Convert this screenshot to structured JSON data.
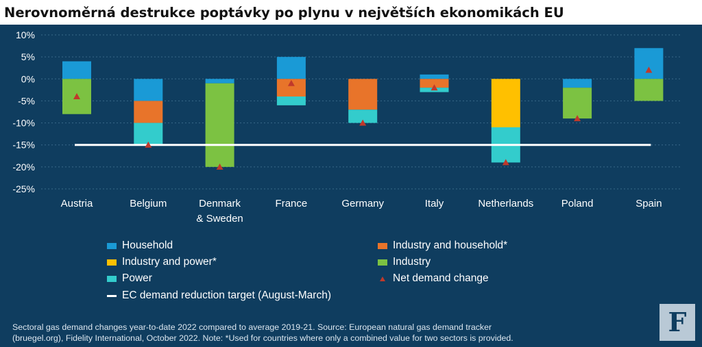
{
  "title": "Nerovnoměrná destrukce poptávky po plynu v největších ekonomikách EU",
  "colors": {
    "background": "#0f3d5f",
    "household": "#1a9ad6",
    "industry_and_household": "#e8742a",
    "industry_and_power": "#ffc000",
    "industry": "#7cc242",
    "power": "#33cccc",
    "net_demand_change": "#c0392b",
    "target_line": "#ffffff"
  },
  "legend": {
    "household": "Household",
    "industry_and_household": "Industry and household*",
    "industry_and_power": "Industry and power*",
    "industry": "Industry",
    "power": "Power",
    "net_demand_change": "Net demand change",
    "target": "EC demand reduction target (August-March)"
  },
  "footnote": {
    "line1": "Sectoral gas demand changes year-to-date 2022 compared to average 2019-21. Source: European natural gas demand tracker",
    "line2": "(bruegel.org), Fidelity International, October 2022. Note: *Used for countries where only a combined value for two sectors is provided."
  },
  "logo": {
    "glyph": "F",
    "icon": "fidelity-logo-icon"
  },
  "chart_data": {
    "type": "bar",
    "stacked": true,
    "ylim": [
      -25,
      10
    ],
    "yticks": [
      10,
      5,
      0,
      -5,
      -10,
      -15,
      -20,
      -25
    ],
    "ytick_labels": [
      "10%",
      "5%",
      "0%",
      "-5%",
      "-10%",
      "-15%",
      "-20%",
      "-25%"
    ],
    "categories": [
      [
        "Austria"
      ],
      [
        "Belgium"
      ],
      [
        "Denmark",
        "& Sweden"
      ],
      [
        "France"
      ],
      [
        "Germany"
      ],
      [
        "Italy"
      ],
      [
        "Netherlands"
      ],
      [
        "Poland"
      ],
      [
        "Spain"
      ]
    ],
    "series": [
      {
        "key": "household",
        "name": "Household",
        "values": [
          4,
          -5,
          -1,
          5,
          0,
          1,
          0,
          -2,
          7
        ]
      },
      {
        "key": "industry_and_household",
        "name": "Industry and household*",
        "values": [
          0,
          -5,
          0,
          -4,
          -7,
          -2,
          0,
          0,
          0
        ]
      },
      {
        "key": "industry_and_power",
        "name": "Industry and power*",
        "values": [
          0,
          0,
          0,
          0,
          0,
          0,
          -11,
          0,
          0
        ]
      },
      {
        "key": "industry",
        "name": "Industry",
        "values": [
          -8,
          0,
          -19,
          0,
          0,
          0,
          0,
          -7,
          -5
        ]
      },
      {
        "key": "power",
        "name": "Power",
        "values": [
          0,
          -5,
          0,
          -2,
          -3,
          -1,
          -8,
          0,
          0
        ]
      }
    ],
    "net_demand_change": {
      "name": "Net demand change",
      "values": [
        -4,
        -15,
        -20,
        -1,
        -10,
        -2,
        -19,
        -9,
        2
      ]
    },
    "target": {
      "name": "EC demand reduction target (August-March)",
      "value": -15
    },
    "grid": true,
    "legend_position": "bottom"
  }
}
